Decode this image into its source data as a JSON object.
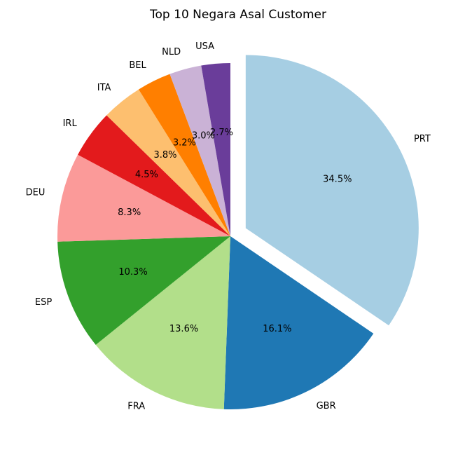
{
  "chart_data": {
    "type": "pie",
    "title": "Top 10 Negara Asal Customer",
    "categories": [
      "PRT",
      "GBR",
      "FRA",
      "ESP",
      "DEU",
      "IRL",
      "ITA",
      "BEL",
      "NLD",
      "USA"
    ],
    "values": [
      34.5,
      16.1,
      13.6,
      10.3,
      8.3,
      4.5,
      3.8,
      3.2,
      3.0,
      2.7
    ],
    "percent_labels": [
      "34.5%",
      "16.1%",
      "13.6%",
      "10.3%",
      "8.3%",
      "4.5%",
      "3.8%",
      "3.2%",
      "3.0%",
      "2.7%"
    ],
    "colors": [
      "#a6cee3",
      "#1f78b4",
      "#b2df8a",
      "#33a02c",
      "#fb9a99",
      "#e31a1c",
      "#fdbf6f",
      "#ff7f00",
      "#cab2d6",
      "#6a3d9a"
    ],
    "start_angle_deg": 90,
    "direction": "clockwise",
    "exploded": [
      "PRT"
    ]
  }
}
